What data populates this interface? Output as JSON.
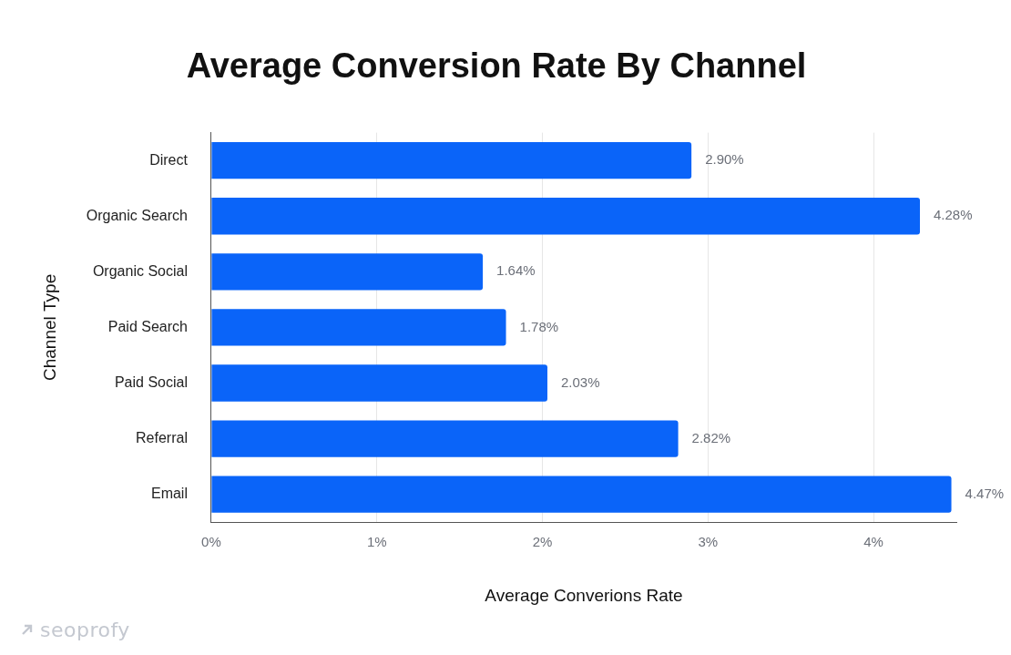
{
  "chart_data": {
    "type": "bar",
    "orientation": "horizontal",
    "title": "Average Conversion Rate By Channel",
    "x_label": "Average Converions Rate",
    "y_label": "Channel Type",
    "categories": [
      "Direct",
      "Organic Search",
      "Organic Social",
      "Paid Search",
      "Paid Social",
      "Referral",
      "Email"
    ],
    "values": [
      2.9,
      4.28,
      1.64,
      1.78,
      2.03,
      2.82,
      4.47
    ],
    "value_labels": [
      "2.90%",
      "4.28%",
      "1.64%",
      "1.78%",
      "2.03%",
      "2.82%",
      "4.47%"
    ],
    "color": "#0a64f9",
    "xlim": [
      0,
      4.5
    ],
    "xticks": [
      {
        "value": 0,
        "label": "0%"
      },
      {
        "value": 1,
        "label": "1%"
      },
      {
        "value": 2,
        "label": "2%"
      },
      {
        "value": 3,
        "label": "3%"
      },
      {
        "value": 4,
        "label": "4%"
      }
    ],
    "grid": true,
    "data_labels": true,
    "annotations": [
      "seoprofy"
    ]
  }
}
